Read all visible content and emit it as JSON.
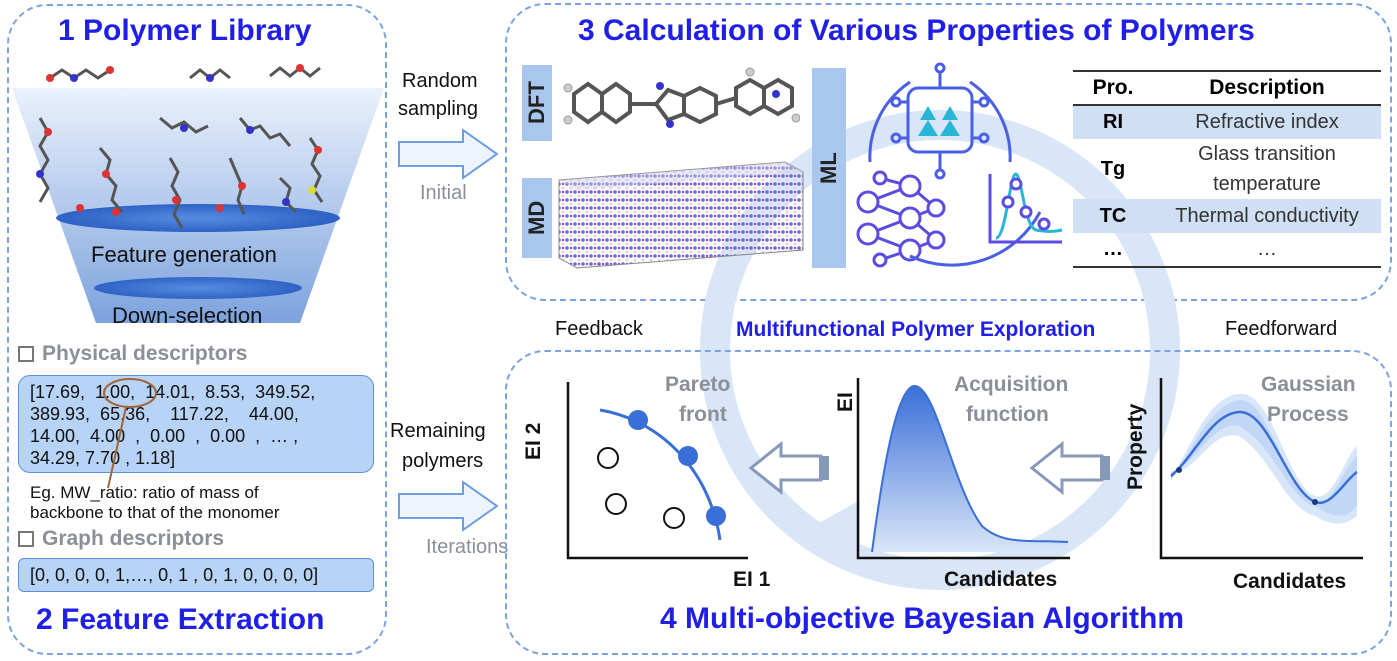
{
  "panel1": {
    "title": "1 Polymer Library",
    "funnel_layers": [
      "Feature generation",
      "Down-selection"
    ]
  },
  "panel2": {
    "title": "2 Feature Extraction",
    "physical_header": "Physical descriptors",
    "physical_values_line1": "[17.69,  1.00,  14.01,  8.53,  349.52,",
    "physical_values_line2": "389.93,  65.36,    117.22,    44.00,",
    "physical_values_line3": "14.00,  4.00  ,  0.00  ,  0.00  ,  … ,",
    "physical_values_line4": "34.29, 7.70 , 1.18]",
    "annotation_line1": "Eg. MW_ratio: ratio of mass of",
    "annotation_line2": "backbone to that of the monomer",
    "graph_header": "Graph descriptors",
    "graph_values": "[0, 0, 0, 0, 1,…, 0, 1 , 0, 1, 0, 0, 0, 0]"
  },
  "arrows": {
    "top_line1": "Random",
    "top_line2": "sampling",
    "top_sub": "Initial",
    "bottom_line1": "Remaining",
    "bottom_line2": "polymers",
    "bottom_sub": "Iterations"
  },
  "panel3": {
    "title": "3 Calculation of Various Properties of Polymers",
    "tag_dft": "DFT",
    "tag_md": "MD",
    "tag_ml": "ML",
    "table": {
      "headers": [
        "Pro.",
        "Description"
      ],
      "rows": [
        {
          "pro": "RI",
          "desc1": "Refractive index",
          "desc2": ""
        },
        {
          "pro": "Tg",
          "desc1": "Glass transition",
          "desc2": "temperature"
        },
        {
          "pro": "TC",
          "desc1": "Thermal conductivity",
          "desc2": ""
        },
        {
          "pro": "…",
          "desc1": "…",
          "desc2": ""
        }
      ]
    }
  },
  "loop": {
    "center": "Multifunctional Polymer Exploration",
    "left": "Feedback",
    "right": "Feedforward"
  },
  "panel4": {
    "title": "4 Multi-objective Bayesian Algorithm",
    "pareto": {
      "label_line1": "Pareto",
      "label_line2": "front",
      "ylabel": "EI 2",
      "xlabel": "EI 1"
    },
    "acquisition": {
      "label_line1": "Acquisition",
      "label_line2": "function",
      "ylabel": "EI",
      "xlabel": "Candidates"
    },
    "gaussian": {
      "label_line1": "Gaussian",
      "label_line2": "Process",
      "ylabel": "Property",
      "xlabel": "Candidates"
    }
  },
  "colors": {
    "title_blue": "#1f1fe8",
    "panel_border": "#7aa3e0",
    "descriptor_box": "#b7d3f6",
    "point_blue": "#3a6fd8",
    "gray_text": "#8a8f98"
  }
}
